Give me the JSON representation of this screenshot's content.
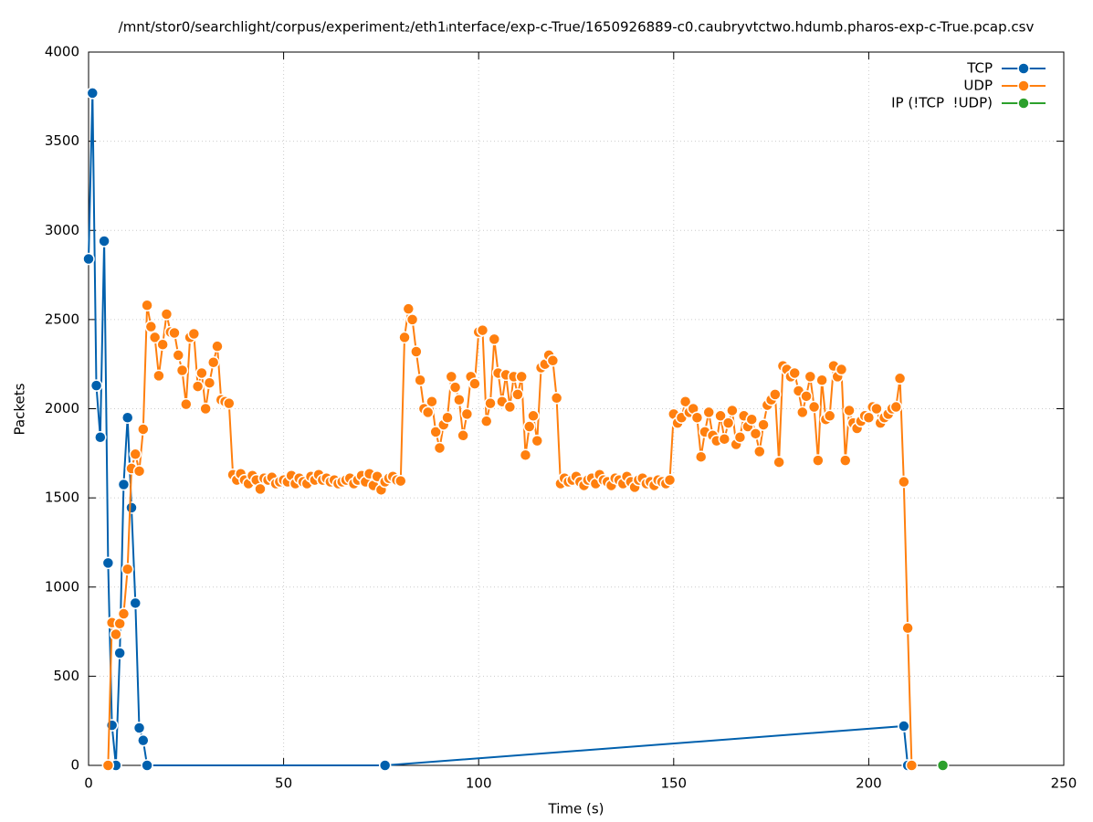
{
  "chart_data": {
    "type": "line",
    "title": "/mnt/stor0/searchlight/corpus/experiment₂/eth1ᵢnterface/exp-c-True/1650926889-c0.caubryvtctwo.hdumb.pharos-exp-c-True.pcap.csv",
    "x_label": "Time (s)",
    "y_label": "Packets",
    "xlim": [
      0,
      250
    ],
    "xticks": [
      0,
      50,
      100,
      150,
      200,
      250
    ],
    "ylim": [
      0,
      4000
    ],
    "yticks": [
      0,
      500,
      1000,
      1500,
      2000,
      2500,
      3000,
      3500,
      4000
    ],
    "grid": true,
    "legend": "top-right",
    "series": [
      {
        "name": "TCP",
        "color": "#0060ad",
        "x": [
          0,
          1,
          2,
          3,
          4,
          5,
          6,
          7,
          8,
          9,
          10,
          11,
          12,
          13,
          14,
          15,
          76,
          209,
          210
        ],
        "values": [
          2840,
          3770,
          2130,
          1840,
          2940,
          1135,
          225,
          0,
          630,
          1575,
          1950,
          1445,
          910,
          210,
          140,
          0,
          0,
          220,
          0
        ]
      },
      {
        "name": "UDP",
        "color": "#ff7f0e",
        "x": [
          5,
          6,
          7,
          8,
          9,
          10,
          11,
          12,
          13,
          14,
          15,
          16,
          17,
          18,
          19,
          20,
          21,
          22,
          23,
          24,
          25,
          26,
          27,
          28,
          29,
          30,
          31,
          32,
          33,
          34,
          35,
          36,
          37,
          38,
          39,
          40,
          41,
          42,
          43,
          44,
          45,
          46,
          47,
          48,
          49,
          50,
          51,
          52,
          53,
          54,
          55,
          56,
          57,
          58,
          59,
          60,
          61,
          62,
          63,
          64,
          65,
          66,
          67,
          68,
          69,
          70,
          71,
          72,
          73,
          74,
          75,
          76,
          77,
          78,
          79,
          80,
          81,
          82,
          83,
          84,
          85,
          86,
          87,
          88,
          89,
          90,
          91,
          92,
          93,
          94,
          95,
          96,
          97,
          98,
          99,
          100,
          101,
          102,
          103,
          104,
          105,
          106,
          107,
          108,
          109,
          110,
          111,
          112,
          113,
          114,
          115,
          116,
          117,
          118,
          119,
          120,
          121,
          122,
          123,
          124,
          125,
          126,
          127,
          128,
          129,
          130,
          131,
          132,
          133,
          134,
          135,
          136,
          137,
          138,
          139,
          140,
          141,
          142,
          143,
          144,
          145,
          146,
          147,
          148,
          149,
          150,
          151,
          152,
          153,
          154,
          155,
          156,
          157,
          158,
          159,
          160,
          161,
          162,
          163,
          164,
          165,
          166,
          167,
          168,
          169,
          170,
          171,
          172,
          173,
          174,
          175,
          176,
          177,
          178,
          179,
          180,
          181,
          182,
          183,
          184,
          185,
          186,
          187,
          188,
          189,
          190,
          191,
          192,
          193,
          194,
          195,
          196,
          197,
          198,
          199,
          200,
          201,
          202,
          203,
          204,
          205,
          206,
          207,
          208,
          209,
          210,
          211
        ],
        "values": [
          0,
          800,
          735,
          795,
          850,
          1100,
          1665,
          1745,
          1650,
          1885,
          2580,
          2460,
          2400,
          2185,
          2360,
          2530,
          2430,
          2425,
          2300,
          2215,
          2025,
          2400,
          2420,
          2125,
          2200,
          2000,
          2145,
          2260,
          2350,
          2050,
          2040,
          2030,
          1630,
          1600,
          1635,
          1600,
          1580,
          1625,
          1600,
          1550,
          1610,
          1600,
          1615,
          1580,
          1590,
          1600,
          1590,
          1625,
          1580,
          1610,
          1590,
          1580,
          1620,
          1600,
          1630,
          1600,
          1610,
          1590,
          1600,
          1580,
          1590,
          1600,
          1610,
          1580,
          1600,
          1625,
          1590,
          1635,
          1570,
          1620,
          1545,
          1590,
          1610,
          1620,
          1600,
          1595,
          2400,
          2560,
          2500,
          2320,
          2160,
          2000,
          1980,
          2040,
          1870,
          1780,
          1910,
          1950,
          2180,
          2120,
          2050,
          1850,
          1970,
          2180,
          2140,
          2430,
          2440,
          1930,
          2030,
          2390,
          2200,
          2040,
          2190,
          2010,
          2180,
          2080,
          2180,
          1740,
          1900,
          1960,
          1820,
          2230,
          2250,
          2300,
          2270,
          2060,
          1580,
          1610,
          1590,
          1600,
          1620,
          1590,
          1570,
          1600,
          1610,
          1580,
          1630,
          1600,
          1590,
          1570,
          1610,
          1600,
          1580,
          1620,
          1590,
          1560,
          1600,
          1610,
          1580,
          1590,
          1570,
          1600,
          1590,
          1580,
          1600,
          1970,
          1920,
          1950,
          2040,
          1980,
          2000,
          1950,
          1730,
          1870,
          1980,
          1850,
          1820,
          1960,
          1830,
          1920,
          1990,
          1800,
          1840,
          1960,
          1900,
          1940,
          1860,
          1760,
          1910,
          2020,
          2050,
          2080,
          1700,
          2240,
          2220,
          2180,
          2200,
          2100,
          1980,
          2070,
          2180,
          2010,
          1710,
          2160,
          1940,
          1960,
          2240,
          2180,
          2220,
          1710,
          1990,
          1920,
          1890,
          1930,
          1960,
          1950,
          2010,
          2000,
          1920,
          1950,
          1970,
          2000,
          2010,
          2170,
          1590,
          770,
          0
        ]
      },
      {
        "name": "IP (!TCP  !UDP)",
        "color": "#2ca02c",
        "x": [
          219
        ],
        "values": [
          0
        ]
      }
    ]
  }
}
